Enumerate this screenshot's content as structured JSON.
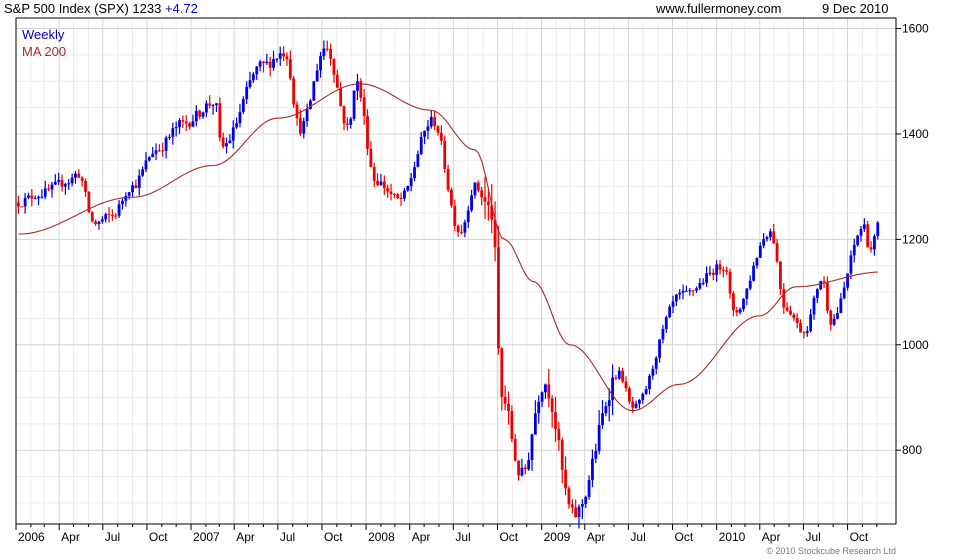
{
  "header": {
    "symbol_text": "S&P 500 Index (SPX) 1233",
    "change_text": "+4.72",
    "site": "www.fullermoney.com",
    "date": "9 Dec 2010"
  },
  "legend": {
    "weekly": "Weekly",
    "ma": "MA 200"
  },
  "copyright": "© 2010 Stockcube Research Ltd",
  "colors": {
    "up": "#0000e6",
    "down": "#ee0000",
    "ma": "#a52a2a",
    "grid": "#d4d4d4",
    "axis": "#000000"
  },
  "chart_data": {
    "type": "candlestick",
    "title": "S&P 500 Index (SPX) 1233 +4.72",
    "period": "Weekly",
    "x_range": [
      "2006-01",
      "2010-12"
    ],
    "ylim": [
      660,
      1620
    ],
    "y_ticks": [
      800,
      1000,
      1200,
      1400,
      1600
    ],
    "x_tick_labels": [
      "2006",
      "Apr",
      "Jul",
      "Oct",
      "2007",
      "Apr",
      "Jul",
      "Oct",
      "2008",
      "Apr",
      "Jul",
      "Oct",
      "2009",
      "Apr",
      "Jul",
      "Oct",
      "2010",
      "Apr",
      "Jul",
      "Oct"
    ],
    "grid": true,
    "y_axis_side": "right",
    "price_anchors": [
      {
        "date": "2006-01-06",
        "close": 1270
      },
      {
        "date": "2006-02-15",
        "close": 1285
      },
      {
        "date": "2006-04-20",
        "close": 1310
      },
      {
        "date": "2006-05-10",
        "close": 1325
      },
      {
        "date": "2006-06-13",
        "close": 1230
      },
      {
        "date": "2006-07-20",
        "close": 1245
      },
      {
        "date": "2006-08-30",
        "close": 1300
      },
      {
        "date": "2006-10-20",
        "close": 1370
      },
      {
        "date": "2006-12-15",
        "close": 1420
      },
      {
        "date": "2007-02-20",
        "close": 1460
      },
      {
        "date": "2007-03-05",
        "close": 1375
      },
      {
        "date": "2007-05-30",
        "close": 1530
      },
      {
        "date": "2007-07-16",
        "close": 1555
      },
      {
        "date": "2007-08-16",
        "close": 1410
      },
      {
        "date": "2007-10-09",
        "close": 1565
      },
      {
        "date": "2007-11-26",
        "close": 1410
      },
      {
        "date": "2007-12-10",
        "close": 1500
      },
      {
        "date": "2008-01-22",
        "close": 1310
      },
      {
        "date": "2008-03-10",
        "close": 1275
      },
      {
        "date": "2008-05-19",
        "close": 1425
      },
      {
        "date": "2008-07-15",
        "close": 1215
      },
      {
        "date": "2008-08-15",
        "close": 1300
      },
      {
        "date": "2008-09-19",
        "close": 1250
      },
      {
        "date": "2008-10-10",
        "close": 900
      },
      {
        "date": "2008-11-20",
        "close": 752
      },
      {
        "date": "2009-01-06",
        "close": 930
      },
      {
        "date": "2009-03-09",
        "close": 677
      },
      {
        "date": "2009-06-12",
        "close": 945
      },
      {
        "date": "2009-07-10",
        "close": 880
      },
      {
        "date": "2009-10-20",
        "close": 1095
      },
      {
        "date": "2010-01-19",
        "close": 1150
      },
      {
        "date": "2010-02-05",
        "close": 1060
      },
      {
        "date": "2010-04-23",
        "close": 1215
      },
      {
        "date": "2010-05-25",
        "close": 1070
      },
      {
        "date": "2010-07-02",
        "close": 1025
      },
      {
        "date": "2010-08-09",
        "close": 1125
      },
      {
        "date": "2010-08-27",
        "close": 1045
      },
      {
        "date": "2010-11-05",
        "close": 1225
      },
      {
        "date": "2010-11-16",
        "close": 1180
      },
      {
        "date": "2010-12-09",
        "close": 1233
      }
    ],
    "ma200_anchors": [
      {
        "date": "2006-01-06",
        "value": 1210
      },
      {
        "date": "2006-09-01",
        "value": 1280
      },
      {
        "date": "2007-02-15",
        "value": 1340
      },
      {
        "date": "2007-07-01",
        "value": 1430
      },
      {
        "date": "2007-12-20",
        "value": 1495
      },
      {
        "date": "2008-05-15",
        "value": 1445
      },
      {
        "date": "2008-08-15",
        "value": 1370
      },
      {
        "date": "2008-10-15",
        "value": 1200
      },
      {
        "date": "2008-12-15",
        "value": 1120
      },
      {
        "date": "2009-03-01",
        "value": 1000
      },
      {
        "date": "2009-07-10",
        "value": 875
      },
      {
        "date": "2009-10-15",
        "value": 925
      },
      {
        "date": "2010-04-01",
        "value": 1055
      },
      {
        "date": "2010-06-15",
        "value": 1110
      },
      {
        "date": "2010-12-09",
        "value": 1138
      }
    ]
  }
}
